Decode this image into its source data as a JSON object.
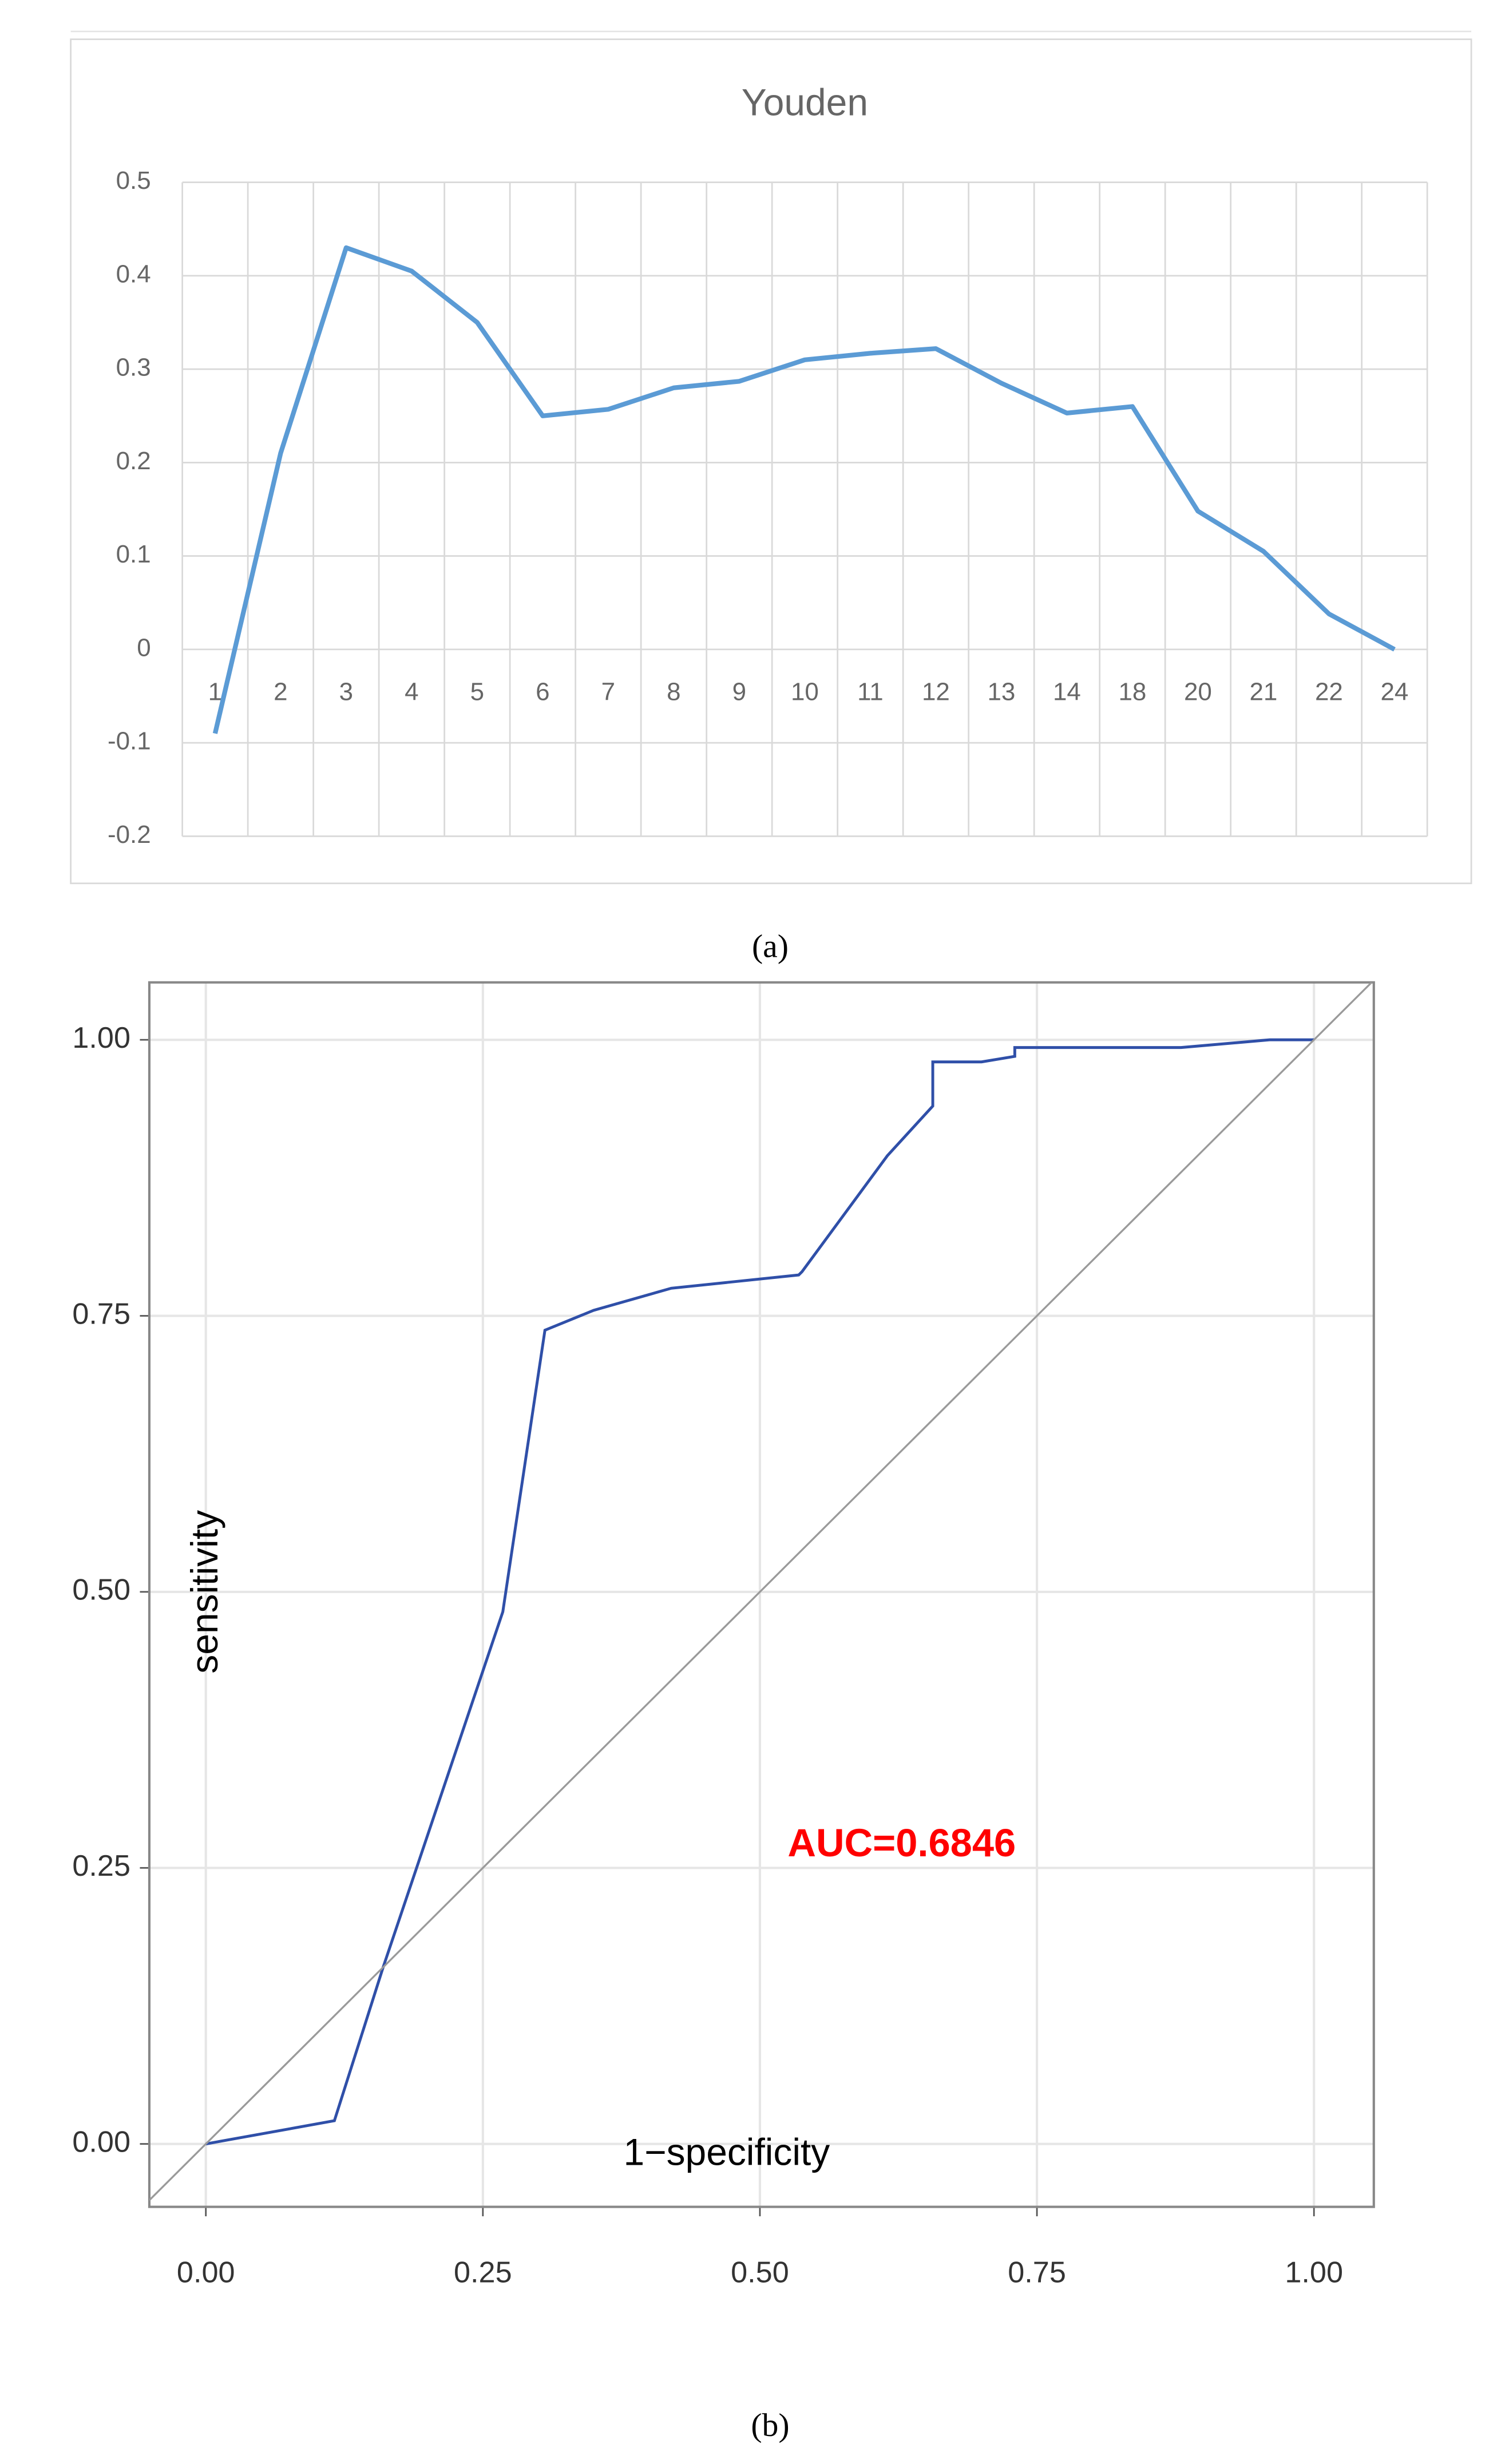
{
  "chart_data": [
    {
      "type": "line",
      "title": "Youden",
      "panel_label": "(a)",
      "categories": [
        "1",
        "2",
        "3",
        "4",
        "5",
        "6",
        "7",
        "8",
        "9",
        "10",
        "11",
        "12",
        "13",
        "14",
        "18",
        "20",
        "21",
        "22",
        "24"
      ],
      "values": [
        -0.09,
        0.21,
        0.43,
        0.405,
        0.35,
        0.25,
        0.257,
        0.28,
        0.287,
        0.31,
        0.317,
        0.322,
        0.285,
        0.253,
        0.26,
        0.148,
        0.105,
        0.038,
        0.0
      ],
      "color": "#5b9bd5",
      "ylim": [
        -0.2,
        0.5
      ],
      "yticks": [
        -0.2,
        -0.1,
        0,
        0.1,
        0.2,
        0.3,
        0.4,
        0.5
      ],
      "grid": true
    },
    {
      "type": "line",
      "panel_label": "(b)",
      "x_label": "1−specificity",
      "y_label": "sensitivity",
      "annotation": "AUC=0.6846",
      "series": [
        {
          "color": "#2f4fa8",
          "x": [
            0,
            0.116,
            0.16,
            0.268,
            0.306,
            0.35,
            0.42,
            0.535,
            0.538,
            0.615,
            0.656,
            0.656,
            0.7,
            0.73,
            0.73,
            0.85,
            0.88,
            0.96,
            1.0
          ],
          "values": [
            0,
            0.021,
            0.16,
            0.482,
            0.737,
            0.755,
            0.775,
            0.787,
            0.79,
            0.895,
            0.94,
            0.98,
            0.98,
            0.985,
            0.993,
            0.993,
            0.993,
            1.0,
            1.0
          ]
        },
        {
          "color": "#9a9a9a",
          "x": [
            -0.051,
            1.054
          ],
          "values": [
            -0.051,
            1.054
          ]
        }
      ],
      "xlim": [
        -0.051,
        1.054
      ],
      "ylim": [
        -0.057,
        1.052
      ],
      "xticks": [
        {
          "value": 0,
          "label": "0.00"
        },
        {
          "value": 0.25,
          "label": "0.25"
        },
        {
          "value": 0.5,
          "label": "0.50"
        },
        {
          "value": 0.75,
          "label": "0.75"
        },
        {
          "value": 1,
          "label": "1.00"
        }
      ],
      "yticks": [
        {
          "value": 0,
          "label": "0.00"
        },
        {
          "value": 0.25,
          "label": "0.25"
        },
        {
          "value": 0.5,
          "label": "0.50"
        },
        {
          "value": 0.75,
          "label": "0.75"
        },
        {
          "value": 1,
          "label": "1.00"
        }
      ],
      "grid": true
    }
  ]
}
